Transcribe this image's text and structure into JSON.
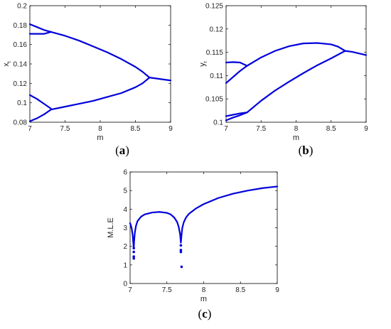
{
  "captions": {
    "a": [
      "(",
      "a",
      ")"
    ],
    "b": [
      "(",
      "b",
      ")"
    ],
    "c": [
      "(",
      "c",
      ")"
    ]
  },
  "chart_data": [
    {
      "id": "a",
      "type": "line",
      "xlabel": "m",
      "ylabel": "x",
      "ylabel_sub": "t",
      "xlim": [
        7,
        9
      ],
      "ylim": [
        0.08,
        0.2
      ],
      "xticks": [
        "7",
        "7.5",
        "8",
        "8.5",
        "9"
      ],
      "yticks": [
        "0.08",
        "0.1",
        "0.12",
        "0.14",
        "0.16",
        "0.18",
        "0.2"
      ],
      "color": "#0000dd",
      "series": [
        {
          "x": [
            7,
            7.1,
            7.2,
            7.3
          ],
          "y": [
            0.181,
            0.178,
            0.175,
            0.173
          ]
        },
        {
          "x": [
            7,
            7.1,
            7.2,
            7.3
          ],
          "y": [
            0.171,
            0.171,
            0.171,
            0.173
          ]
        },
        {
          "x": [
            7.3,
            7.5,
            7.7,
            7.9,
            8.1,
            8.3,
            8.5,
            8.6,
            8.7
          ],
          "y": [
            0.173,
            0.169,
            0.164,
            0.158,
            0.152,
            0.145,
            0.137,
            0.132,
            0.126
          ]
        },
        {
          "x": [
            7,
            7.1,
            7.2,
            7.3
          ],
          "y": [
            0.108,
            0.104,
            0.099,
            0.094
          ]
        },
        {
          "x": [
            7,
            7.1,
            7.2,
            7.3
          ],
          "y": [
            0.081,
            0.084,
            0.088,
            0.093
          ]
        },
        {
          "x": [
            7.3,
            7.5,
            7.7,
            7.9,
            8.1,
            8.3,
            8.5,
            8.6,
            8.7
          ],
          "y": [
            0.093,
            0.096,
            0.099,
            0.102,
            0.106,
            0.11,
            0.116,
            0.12,
            0.126
          ]
        },
        {
          "x": [
            8.7,
            8.8,
            9.0
          ],
          "y": [
            0.126,
            0.125,
            0.123
          ]
        }
      ]
    },
    {
      "id": "b",
      "type": "line",
      "xlabel": "m",
      "ylabel": "y",
      "ylabel_sub": "t",
      "xlim": [
        7,
        9
      ],
      "ylim": [
        0.1,
        0.125
      ],
      "xticks": [
        "7",
        "7.5",
        "8",
        "8.5",
        "9"
      ],
      "yticks": [
        "0.1",
        "0.105",
        "0.11",
        "0.115",
        "0.12",
        "0.125"
      ],
      "color": "#0000dd",
      "series": [
        {
          "x": [
            7,
            7.1,
            7.2,
            7.3
          ],
          "y": [
            0.1128,
            0.1129,
            0.1128,
            0.1121
          ]
        },
        {
          "x": [
            7,
            7.1,
            7.2,
            7.3
          ],
          "y": [
            0.1084,
            0.1097,
            0.111,
            0.1121
          ]
        },
        {
          "x": [
            7.3,
            7.5,
            7.7,
            7.9,
            8.1,
            8.3,
            8.5,
            8.6,
            8.7
          ],
          "y": [
            0.1121,
            0.1139,
            0.1153,
            0.1163,
            0.1169,
            0.117,
            0.1167,
            0.1162,
            0.1153
          ]
        },
        {
          "x": [
            7,
            7.1,
            7.2,
            7.3
          ],
          "y": [
            0.1013,
            0.1016,
            0.1019,
            0.1021
          ]
        },
        {
          "x": [
            7,
            7.1,
            7.2,
            7.3
          ],
          "y": [
            0.1004,
            0.101,
            0.1015,
            0.1021
          ]
        },
        {
          "x": [
            7.3,
            7.5,
            7.7,
            7.9,
            8.1,
            8.3,
            8.5,
            8.6,
            8.7
          ],
          "y": [
            0.1021,
            0.1046,
            0.1068,
            0.1087,
            0.1105,
            0.1122,
            0.1137,
            0.1145,
            0.1153
          ]
        },
        {
          "x": [
            8.7,
            8.8,
            9.0
          ],
          "y": [
            0.1153,
            0.1151,
            0.1144
          ]
        }
      ]
    },
    {
      "id": "c",
      "type": "line",
      "xlabel": "m",
      "ylabel": "M.L.E",
      "xlim": [
        7,
        9
      ],
      "ylim": [
        0,
        6
      ],
      "xticks": [
        "7",
        "7.5",
        "8",
        "8.5",
        "9"
      ],
      "yticks": [
        "0",
        "1",
        "2",
        "3",
        "4",
        "5",
        "6"
      ],
      "color": "#0000dd",
      "series": [
        {
          "x": [
            7.0,
            7.02,
            7.035,
            7.045,
            7.05
          ],
          "y": [
            3.25,
            3.0,
            2.6,
            2.1,
            1.9
          ]
        },
        {
          "x": [
            7.05,
            7.055,
            7.065,
            7.08,
            7.1,
            7.15,
            7.2,
            7.3,
            7.4,
            7.5,
            7.55,
            7.6,
            7.64,
            7.66,
            7.68,
            7.69
          ],
          "y": [
            1.9,
            2.3,
            2.75,
            3.1,
            3.35,
            3.6,
            3.72,
            3.82,
            3.85,
            3.8,
            3.72,
            3.55,
            3.3,
            3.05,
            2.65,
            2.2
          ]
        },
        {
          "x": [
            7.69,
            7.7,
            7.71,
            7.73,
            7.76,
            7.8,
            7.9,
            8.0,
            8.2,
            8.4,
            8.6,
            8.8,
            9.0
          ],
          "y": [
            2.2,
            2.65,
            3.0,
            3.3,
            3.55,
            3.75,
            4.05,
            4.27,
            4.6,
            4.83,
            5.0,
            5.13,
            5.22
          ]
        }
      ],
      "points": {
        "x": [
          7.05,
          7.05,
          7.05,
          7.05,
          7.69,
          7.69,
          7.69,
          7.7
        ],
        "y": [
          1.7,
          1.45,
          1.35,
          1.9,
          1.8,
          1.7,
          2.05,
          0.9
        ]
      }
    }
  ]
}
